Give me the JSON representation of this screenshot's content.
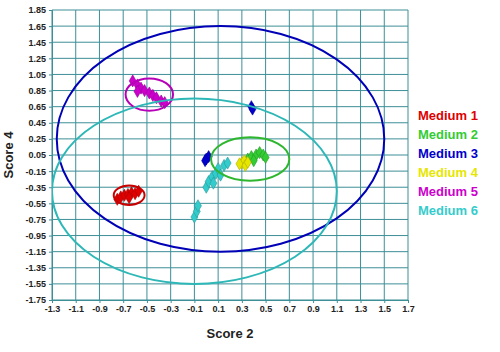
{
  "chart_data": {
    "type": "scatter",
    "x_label": "Score 2",
    "y_label": "Score 4",
    "xlim": [
      -1.3,
      1.7
    ],
    "ylim": [
      -1.75,
      1.85
    ],
    "xticks": [
      -1.3,
      -1.1,
      -0.9,
      -0.7,
      -0.5,
      -0.3,
      -0.1,
      0.1,
      0.3,
      0.5,
      0.7,
      0.9,
      1.1,
      1.3,
      1.5,
      1.7
    ],
    "yticks": [
      -1.75,
      -1.55,
      -1.35,
      -1.15,
      -0.95,
      -0.75,
      -0.55,
      -0.35,
      -0.15,
      0.05,
      0.25,
      0.45,
      0.65,
      0.85,
      1.05,
      1.25,
      1.45,
      1.65,
      1.85
    ],
    "grid": true,
    "marker": "diamond",
    "legend": "right",
    "series": [
      {
        "name": "Medium 1",
        "color": "#e00000",
        "x": [
          -0.75,
          -0.72,
          -0.69,
          -0.66,
          -0.63,
          -0.6,
          -0.57,
          -0.65
        ],
        "values": [
          -0.5,
          -0.47,
          -0.45,
          -0.44,
          -0.42,
          -0.43,
          -0.4,
          -0.48
        ],
        "ellipse": {
          "cx": -0.65,
          "cy": -0.45,
          "rx": 0.13,
          "ry": 0.12
        }
      },
      {
        "name": "Medium 2",
        "color": "#33cc33",
        "x": [
          0.35,
          0.38,
          0.42,
          0.45,
          0.48,
          0.5,
          0.4
        ],
        "values": [
          0.0,
          0.03,
          0.05,
          0.08,
          0.05,
          0.02,
          -0.02
        ],
        "ellipse": {
          "cx": 0.37,
          "cy": 0.0,
          "rx": 0.33,
          "ry": 0.27
        }
      },
      {
        "name": "Medium 3",
        "color": "#0000cc",
        "x": [
          0.38,
          0.39,
          0.0,
          0.02,
          -0.01
        ],
        "values": [
          0.65,
          0.62,
          0.0,
          0.03,
          -0.02
        ],
        "ellipse": {
          "cx": 0.12,
          "cy": 0.25,
          "rx": 1.38,
          "ry": 1.4
        }
      },
      {
        "name": "Medium 4",
        "color": "#e6e600",
        "x": [
          0.3,
          0.32,
          0.33,
          0.35,
          0.28
        ],
        "values": [
          -0.05,
          -0.02,
          -0.08,
          -0.04,
          -0.06
        ]
      },
      {
        "name": "Medium 5",
        "color": "#cc00cc",
        "x": [
          -0.62,
          -0.58,
          -0.55,
          -0.52,
          -0.48,
          -0.45,
          -0.42,
          -0.38,
          -0.35,
          -0.58
        ],
        "values": [
          0.97,
          0.92,
          0.88,
          0.85,
          0.82,
          0.79,
          0.76,
          0.72,
          0.7,
          0.84
        ],
        "ellipse": {
          "cx": -0.48,
          "cy": 0.8,
          "rx": 0.2,
          "ry": 0.2
        }
      },
      {
        "name": "Medium 6",
        "color": "#33cccc",
        "x": [
          -0.1,
          -0.08,
          -0.07,
          0.0,
          0.02,
          0.05,
          0.08,
          0.1,
          0.15,
          0.18,
          0.12,
          0.06
        ],
        "values": [
          -0.72,
          -0.65,
          -0.58,
          -0.35,
          -0.28,
          -0.22,
          -0.18,
          -0.12,
          -0.08,
          -0.05,
          -0.2,
          -0.3
        ],
        "ellipse": {
          "cx": -0.1,
          "cy": -0.4,
          "rx": 1.2,
          "ry": 1.15
        }
      }
    ]
  }
}
